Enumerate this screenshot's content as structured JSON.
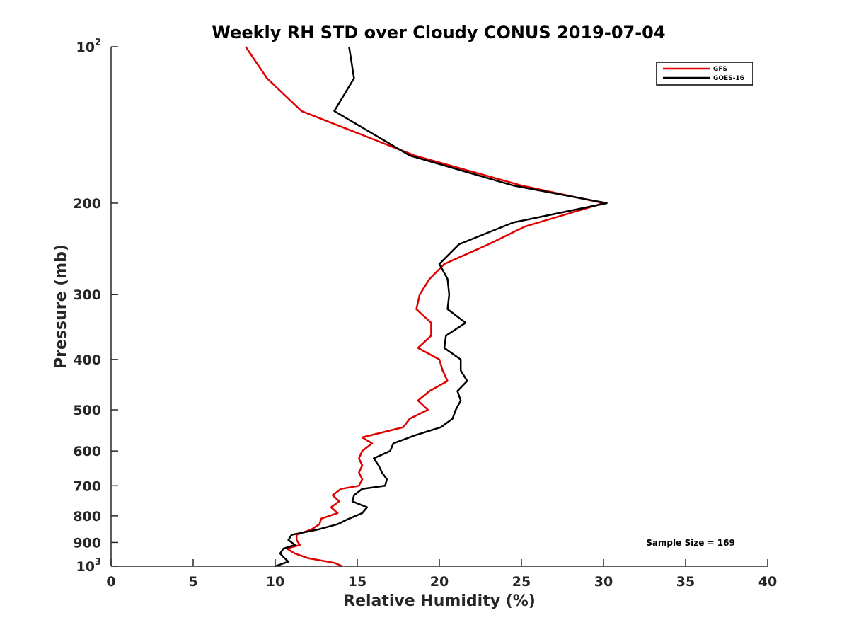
{
  "chart_data": {
    "type": "line",
    "title": "Weekly RH STD over Cloudy CONUS 2019-07-04",
    "xlabel": "Relative Humidity (%)",
    "ylabel": "Pressure (mb)",
    "xlim": [
      0,
      40
    ],
    "ylim": [
      100,
      1000
    ],
    "y_scale": "log",
    "y_reversed": true,
    "x_ticks": [
      0,
      5,
      10,
      15,
      20,
      25,
      30,
      35,
      40
    ],
    "x_tick_labels": [
      "0",
      "5",
      "10",
      "15",
      "20",
      "25",
      "30",
      "35",
      "40"
    ],
    "y_ticks": [
      100,
      200,
      300,
      400,
      500,
      600,
      700,
      800,
      900,
      1000
    ],
    "y_tick_labels": [
      {
        "base": "10",
        "sup": "2"
      },
      {
        "base": "200",
        "sup": ""
      },
      {
        "base": "300",
        "sup": ""
      },
      {
        "base": "400",
        "sup": ""
      },
      {
        "base": "500",
        "sup": ""
      },
      {
        "base": "600",
        "sup": ""
      },
      {
        "base": "700",
        "sup": ""
      },
      {
        "base": "800",
        "sup": ""
      },
      {
        "base": "900",
        "sup": ""
      },
      {
        "base": "10",
        "sup": "3"
      }
    ],
    "grid": false,
    "legend_position": "top-right",
    "annotation": "Sample Size = 169",
    "series": [
      {
        "name": "GFS",
        "color": "#e00000",
        "points": [
          [
            8.2,
            100
          ],
          [
            9.5,
            115
          ],
          [
            11.6,
            133
          ],
          [
            18.5,
            162
          ],
          [
            25.0,
            185
          ],
          [
            30.0,
            200
          ],
          [
            25.2,
            222
          ],
          [
            23.0,
            240
          ],
          [
            20.3,
            262
          ],
          [
            19.4,
            280
          ],
          [
            18.8,
            300
          ],
          [
            18.6,
            320
          ],
          [
            19.5,
            340
          ],
          [
            19.5,
            360
          ],
          [
            18.7,
            380
          ],
          [
            20.0,
            400
          ],
          [
            20.2,
            420
          ],
          [
            20.5,
            440
          ],
          [
            19.4,
            460
          ],
          [
            18.7,
            480
          ],
          [
            19.3,
            500
          ],
          [
            18.2,
            520
          ],
          [
            17.8,
            540
          ],
          [
            15.3,
            565
          ],
          [
            15.9,
            580
          ],
          [
            15.3,
            600
          ],
          [
            15.1,
            620
          ],
          [
            15.3,
            640
          ],
          [
            15.1,
            660
          ],
          [
            15.3,
            680
          ],
          [
            15.1,
            700
          ],
          [
            14.0,
            710
          ],
          [
            13.5,
            730
          ],
          [
            13.9,
            750
          ],
          [
            13.4,
            770
          ],
          [
            13.8,
            790
          ],
          [
            12.8,
            810
          ],
          [
            12.7,
            830
          ],
          [
            12.2,
            850
          ],
          [
            11.3,
            870
          ],
          [
            11.3,
            890
          ],
          [
            11.5,
            910
          ],
          [
            10.7,
            925
          ],
          [
            11.2,
            945
          ],
          [
            12.0,
            965
          ],
          [
            13.6,
            985
          ],
          [
            14.1,
            1000
          ]
        ]
      },
      {
        "name": "GOES-16",
        "color": "#000000",
        "points": [
          [
            14.5,
            100
          ],
          [
            14.8,
            115
          ],
          [
            13.6,
            133
          ],
          [
            18.2,
            162
          ],
          [
            24.5,
            185
          ],
          [
            30.2,
            200
          ],
          [
            24.5,
            218
          ],
          [
            21.2,
            240
          ],
          [
            20.0,
            262
          ],
          [
            20.5,
            280
          ],
          [
            20.6,
            300
          ],
          [
            20.5,
            320
          ],
          [
            21.6,
            340
          ],
          [
            20.4,
            360
          ],
          [
            20.3,
            380
          ],
          [
            21.3,
            400
          ],
          [
            21.3,
            420
          ],
          [
            21.7,
            440
          ],
          [
            21.1,
            460
          ],
          [
            21.3,
            480
          ],
          [
            21.0,
            500
          ],
          [
            20.8,
            520
          ],
          [
            20.1,
            540
          ],
          [
            18.5,
            560
          ],
          [
            17.2,
            580
          ],
          [
            17.0,
            600
          ],
          [
            16.0,
            620
          ],
          [
            16.3,
            640
          ],
          [
            16.5,
            660
          ],
          [
            16.8,
            680
          ],
          [
            16.7,
            700
          ],
          [
            15.3,
            710
          ],
          [
            14.8,
            730
          ],
          [
            14.7,
            750
          ],
          [
            15.6,
            770
          ],
          [
            15.3,
            790
          ],
          [
            14.5,
            810
          ],
          [
            13.8,
            830
          ],
          [
            12.6,
            850
          ],
          [
            11.0,
            870
          ],
          [
            10.8,
            890
          ],
          [
            11.2,
            910
          ],
          [
            10.5,
            925
          ],
          [
            10.3,
            945
          ],
          [
            10.5,
            960
          ],
          [
            10.8,
            980
          ],
          [
            10.0,
            1000
          ]
        ]
      }
    ]
  }
}
